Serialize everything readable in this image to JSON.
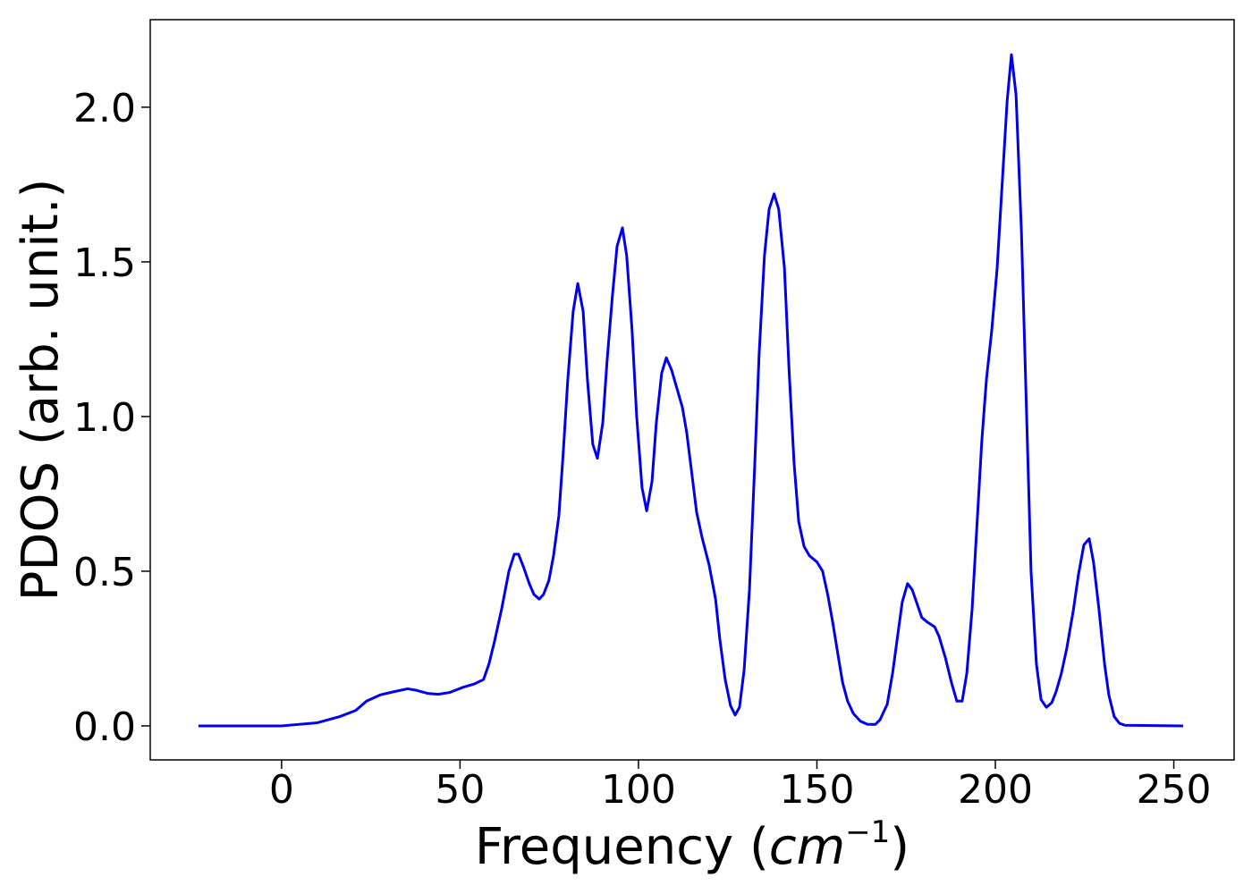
{
  "chart_data": {
    "type": "line",
    "xlabel": [
      "Frequency (",
      "cm",
      "−1",
      ")"
    ],
    "ylabel": "PDOS (arb. unit.)",
    "x": [
      -23.3,
      0,
      10,
      16.3,
      20.8,
      23.8,
      27.6,
      31.3,
      35.3,
      37.8,
      40.9,
      43.9,
      47.1,
      50.9,
      53.9,
      56.6,
      58.1,
      59.6,
      61.7,
      63.7,
      65.2,
      66.4,
      67.9,
      69.4,
      70.7,
      72.2,
      73.4,
      74.9,
      76.2,
      77.7,
      78.9,
      80.2,
      81.7,
      83,
      84.5,
      85.7,
      87.2,
      88.5,
      90,
      91.2,
      92.7,
      94,
      95.5,
      96.7,
      98.2,
      99.5,
      101,
      102.3,
      103.8,
      105,
      106.5,
      107.8,
      109.3,
      110.8,
      112.3,
      113.5,
      114.8,
      116.3,
      117.8,
      119.8,
      121.6,
      122.8,
      124.3,
      125.8,
      127.1,
      128.3,
      129.6,
      131.1,
      132.6,
      133.8,
      135.3,
      136.6,
      138,
      139.3,
      140.9,
      142.2,
      143.6,
      144.9,
      146.4,
      147.9,
      150,
      151.6,
      153.1,
      154.5,
      155.9,
      157.2,
      158.6,
      160.2,
      162.2,
      164.2,
      166.4,
      167.7,
      169.7,
      171.2,
      173.9,
      175.4,
      176.7,
      179.4,
      181,
      183,
      184.2,
      186,
      187.7,
      189.2,
      190.7,
      192,
      193.5,
      196.2,
      197.5,
      199,
      200.5,
      203.3,
      204.5,
      205.8,
      207.3,
      210,
      211.5,
      212.8,
      214.3,
      215.8,
      217,
      218.5,
      220,
      221.8,
      223.3,
      224.8,
      226.3,
      227.5,
      229,
      230.6,
      231.8,
      233.3,
      234.8,
      236.3,
      252.6
    ],
    "series": [
      {
        "name": "PDOS",
        "color": "#0000ee",
        "values": [
          0,
          0,
          0.01,
          0.03,
          0.05,
          0.08,
          0.1,
          0.11,
          0.12,
          0.115,
          0.105,
          0.102,
          0.108,
          0.125,
          0.135,
          0.15,
          0.2,
          0.27,
          0.38,
          0.5,
          0.555,
          0.555,
          0.51,
          0.46,
          0.425,
          0.41,
          0.425,
          0.47,
          0.55,
          0.68,
          0.88,
          1.12,
          1.34,
          1.43,
          1.34,
          1.12,
          0.91,
          0.865,
          0.98,
          1.18,
          1.39,
          1.55,
          1.61,
          1.52,
          1.28,
          1.0,
          0.77,
          0.695,
          0.79,
          0.98,
          1.14,
          1.19,
          1.15,
          1.09,
          1.03,
          0.95,
          0.83,
          0.69,
          0.61,
          0.52,
          0.41,
          0.28,
          0.15,
          0.065,
          0.035,
          0.06,
          0.18,
          0.44,
          0.85,
          1.2,
          1.52,
          1.67,
          1.72,
          1.67,
          1.48,
          1.15,
          0.85,
          0.66,
          0.58,
          0.55,
          0.53,
          0.5,
          0.42,
          0.33,
          0.23,
          0.14,
          0.08,
          0.04,
          0.015,
          0.005,
          0.005,
          0.02,
          0.07,
          0.17,
          0.4,
          0.46,
          0.44,
          0.35,
          0.335,
          0.32,
          0.29,
          0.22,
          0.14,
          0.08,
          0.08,
          0.17,
          0.38,
          0.92,
          1.12,
          1.28,
          1.48,
          2.02,
          2.17,
          2.04,
          1.6,
          0.5,
          0.2,
          0.085,
          0.06,
          0.075,
          0.11,
          0.17,
          0.25,
          0.37,
          0.49,
          0.585,
          0.605,
          0.53,
          0.38,
          0.2,
          0.1,
          0.03,
          0.008,
          0.002,
          0
        ]
      }
    ],
    "xlim": [
      -36.8,
      266.9
    ],
    "ylim": [
      -0.11,
      2.283
    ],
    "xticks": [
      0,
      50,
      100,
      150,
      200,
      250
    ],
    "yticks": [
      {
        "value": 0,
        "label": "0.0"
      },
      {
        "value": 0.5,
        "label": "0.5"
      },
      {
        "value": 1,
        "label": "1.0"
      },
      {
        "value": 1.5,
        "label": "1.5"
      },
      {
        "value": 2,
        "label": "2.0"
      }
    ],
    "grid": false
  }
}
